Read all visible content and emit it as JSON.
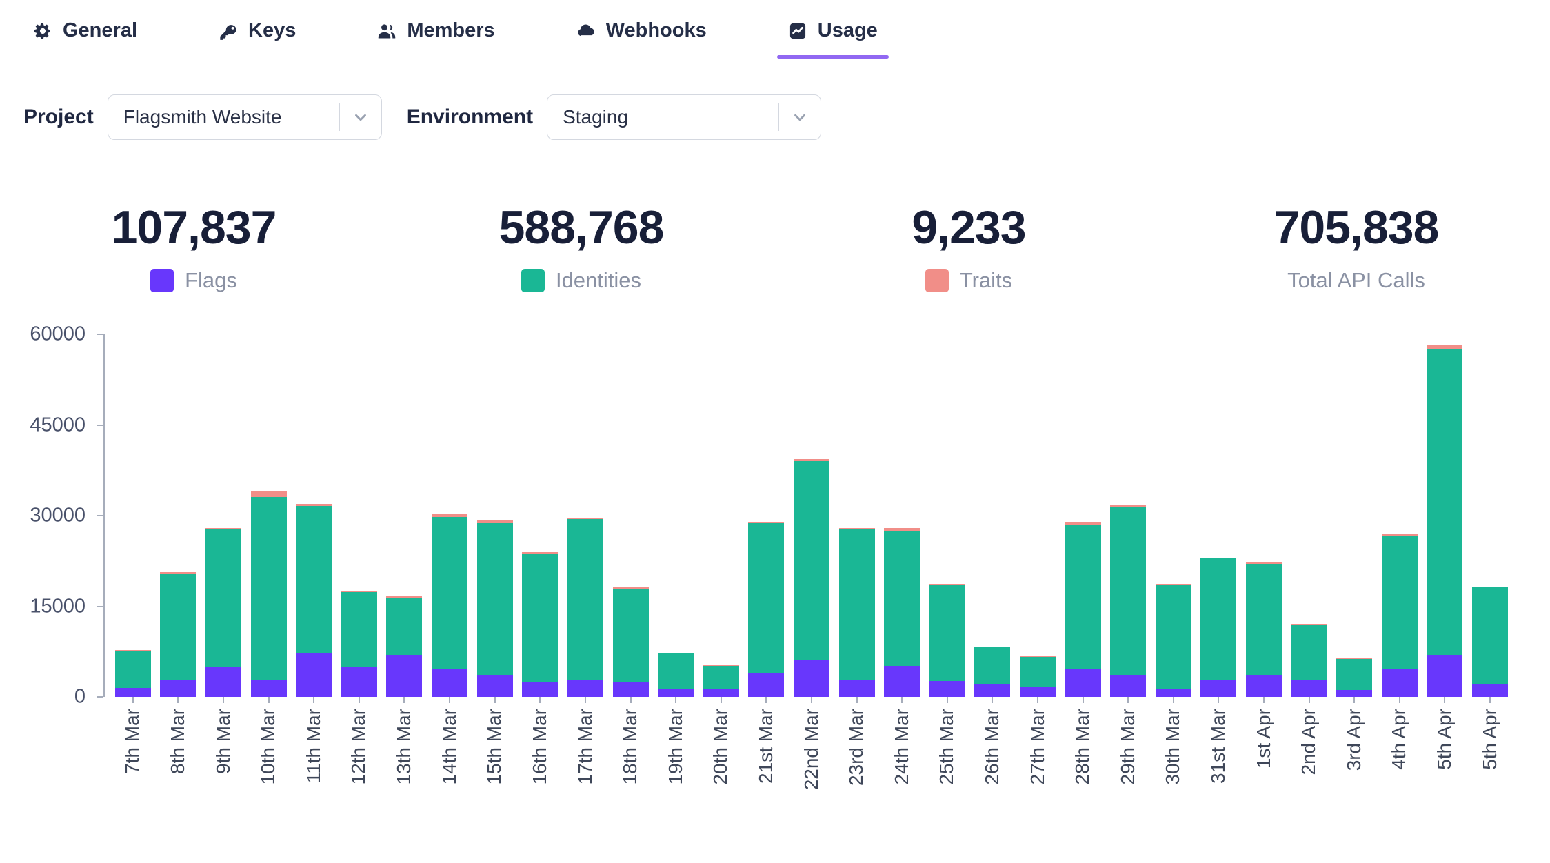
{
  "tabs": [
    {
      "label": "General",
      "icon": "gear-icon"
    },
    {
      "label": "Keys",
      "icon": "key-icon"
    },
    {
      "label": "Members",
      "icon": "members-icon"
    },
    {
      "label": "Webhooks",
      "icon": "cloud-icon"
    },
    {
      "label": "Usage",
      "icon": "usage-chart-icon",
      "active": true
    }
  ],
  "filters": {
    "project_label": "Project",
    "project_value": "Flagsmith Website",
    "environment_label": "Environment",
    "environment_value": "Staging"
  },
  "stats": [
    {
      "value": "107,837",
      "label": "Flags",
      "color": "#6837FC"
    },
    {
      "value": "588,768",
      "label": "Identities",
      "color": "#1AB795"
    },
    {
      "value": "9,233",
      "label": "Traits",
      "color": "#F18E88"
    },
    {
      "value": "705,838",
      "label": "Total API Calls"
    }
  ],
  "colors": {
    "accent_underline": "#9168F2",
    "text_dark": "#1F2940",
    "text_muted": "#8A91A3"
  },
  "chart_data": {
    "type": "bar",
    "stacked": true,
    "grid": false,
    "legend_position": "top",
    "x_label_rotation": -90,
    "ylim": [
      0,
      60000
    ],
    "yticks": [
      0,
      15000,
      30000,
      45000,
      60000
    ],
    "categories": [
      "7th Mar",
      "8th Mar",
      "9th Mar",
      "10th Mar",
      "11th Mar",
      "12th Mar",
      "13th Mar",
      "14th Mar",
      "15th Mar",
      "16th Mar",
      "17th Mar",
      "18th Mar",
      "19th Mar",
      "20th Mar",
      "21st Mar",
      "22nd Mar",
      "23rd Mar",
      "24th Mar",
      "25th Mar",
      "26th Mar",
      "27th Mar",
      "28th Mar",
      "29th Mar",
      "30th Mar",
      "31st Mar",
      "1st Apr",
      "2nd Apr",
      "3rd Apr",
      "4th Apr",
      "5th Apr",
      "5th Apr"
    ],
    "series": [
      {
        "name": "Flags",
        "color": "#6837FC",
        "values": [
          1500,
          2800,
          5000,
          2800,
          7300,
          4900,
          7000,
          4700,
          3600,
          2400,
          2900,
          2400,
          1300,
          1300,
          3900,
          6000,
          2800,
          5100,
          2600,
          2100,
          1600,
          4700,
          3700,
          1300,
          2900,
          3600,
          2800,
          1100,
          4700,
          7000,
          2000
        ]
      },
      {
        "name": "Identities",
        "color": "#1AB795",
        "values": [
          6200,
          17500,
          22700,
          30300,
          24300,
          12400,
          9400,
          25100,
          25200,
          21200,
          26500,
          15500,
          5900,
          3800,
          24800,
          33000,
          24900,
          22400,
          15900,
          6100,
          5000,
          23800,
          27700,
          17200,
          20000,
          18400,
          9200,
          5200,
          21900,
          50500,
          16200
        ]
      },
      {
        "name": "Traits",
        "color": "#F18E88",
        "values": [
          100,
          300,
          300,
          1000,
          400,
          150,
          200,
          500,
          400,
          400,
          300,
          200,
          100,
          100,
          300,
          400,
          300,
          400,
          200,
          100,
          100,
          400,
          400,
          200,
          200,
          200,
          100,
          100,
          300,
          700,
          100
        ]
      }
    ],
    "totals_summary": {
      "flags": "107,837",
      "identities": "588,768",
      "traits": "9,233",
      "total_api_calls": "705,838"
    }
  }
}
